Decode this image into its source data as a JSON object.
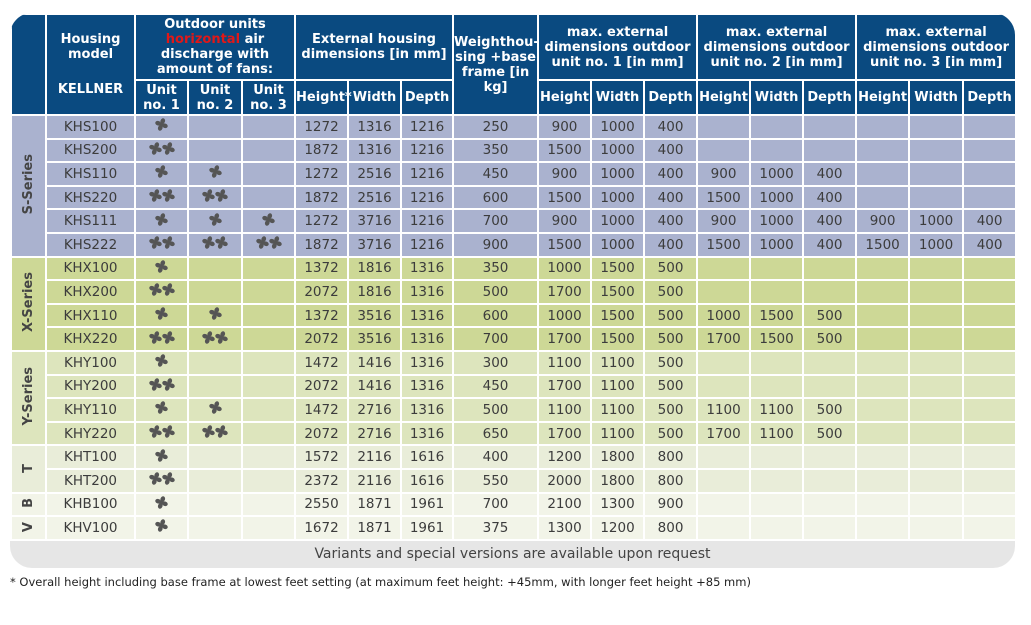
{
  "header": {
    "model": "Housing model",
    "brand": "KELLNER",
    "outdoor_pre": "Outdoor units",
    "outdoor_red": "horizontal",
    "outdoor_post": "air discharge with amount of fans:",
    "units": [
      "Unit no. 1",
      "Unit no. 2",
      "Unit no. 3"
    ],
    "housing": "External housing dimensions [in mm]",
    "weight": "Weighthou-sing +base frame [in kg]",
    "unit1": "max. external dimensions outdoor unit no. 1 [in mm]",
    "unit2": "max. external dimensions outdoor unit no. 2 [in mm]",
    "unit3": "max. external dimensions outdoor unit no. 3 [in mm]",
    "housing_cols": [
      "Height*",
      "Width",
      "Depth"
    ],
    "dim_cols": [
      "Height",
      "Width",
      "Depth"
    ]
  },
  "colors": {
    "header": "#0a4a80",
    "S": "#aab2cf",
    "X": "#cdd896",
    "Y": "#dde5bd",
    "T": "#e9edd9",
    "B": "#f2f4e8",
    "V": "#f2f4e8",
    "accent": "#e01818"
  },
  "groups": [
    {
      "key": "S",
      "label": "S-Series",
      "rows": 6
    },
    {
      "key": "X",
      "label": "X-Series",
      "rows": 4
    },
    {
      "key": "Y",
      "label": "Y-Series",
      "rows": 4
    },
    {
      "key": "T",
      "label": "T",
      "rows": 2
    },
    {
      "key": "B",
      "label": "B",
      "rows": 1
    },
    {
      "key": "V",
      "label": "V",
      "rows": 1
    }
  ],
  "rows": [
    {
      "model": "KHS100",
      "fans": [
        1,
        0,
        0
      ],
      "housing": [
        "1272",
        "1316",
        "1216"
      ],
      "weight": "250",
      "u1": [
        "900",
        "1000",
        "400"
      ],
      "u2": [
        "",
        "",
        ""
      ],
      "u3": [
        "",
        "",
        ""
      ]
    },
    {
      "model": "KHS200",
      "fans": [
        2,
        0,
        0
      ],
      "housing": [
        "1872",
        "1316",
        "1216"
      ],
      "weight": "350",
      "u1": [
        "1500",
        "1000",
        "400"
      ],
      "u2": [
        "",
        "",
        ""
      ],
      "u3": [
        "",
        "",
        ""
      ]
    },
    {
      "model": "KHS110",
      "fans": [
        1,
        1,
        0
      ],
      "housing": [
        "1272",
        "2516",
        "1216"
      ],
      "weight": "450",
      "u1": [
        "900",
        "1000",
        "400"
      ],
      "u2": [
        "900",
        "1000",
        "400"
      ],
      "u3": [
        "",
        "",
        ""
      ]
    },
    {
      "model": "KHS220",
      "fans": [
        2,
        2,
        0
      ],
      "housing": [
        "1872",
        "2516",
        "1216"
      ],
      "weight": "600",
      "u1": [
        "1500",
        "1000",
        "400"
      ],
      "u2": [
        "1500",
        "1000",
        "400"
      ],
      "u3": [
        "",
        "",
        ""
      ]
    },
    {
      "model": "KHS111",
      "fans": [
        1,
        1,
        1
      ],
      "housing": [
        "1272",
        "3716",
        "1216"
      ],
      "weight": "700",
      "u1": [
        "900",
        "1000",
        "400"
      ],
      "u2": [
        "900",
        "1000",
        "400"
      ],
      "u3": [
        "900",
        "1000",
        "400"
      ]
    },
    {
      "model": "KHS222",
      "fans": [
        2,
        2,
        2
      ],
      "housing": [
        "1872",
        "3716",
        "1216"
      ],
      "weight": "900",
      "u1": [
        "1500",
        "1000",
        "400"
      ],
      "u2": [
        "1500",
        "1000",
        "400"
      ],
      "u3": [
        "1500",
        "1000",
        "400"
      ]
    },
    {
      "model": "KHX100",
      "fans": [
        1,
        0,
        0
      ],
      "housing": [
        "1372",
        "1816",
        "1316"
      ],
      "weight": "350",
      "u1": [
        "1000",
        "1500",
        "500"
      ],
      "u2": [
        "",
        "",
        ""
      ],
      "u3": [
        "",
        "",
        ""
      ]
    },
    {
      "model": "KHX200",
      "fans": [
        2,
        0,
        0
      ],
      "housing": [
        "2072",
        "1816",
        "1316"
      ],
      "weight": "500",
      "u1": [
        "1700",
        "1500",
        "500"
      ],
      "u2": [
        "",
        "",
        ""
      ],
      "u3": [
        "",
        "",
        ""
      ]
    },
    {
      "model": "KHX110",
      "fans": [
        1,
        1,
        0
      ],
      "housing": [
        "1372",
        "3516",
        "1316"
      ],
      "weight": "600",
      "u1": [
        "1000",
        "1500",
        "500"
      ],
      "u2": [
        "1000",
        "1500",
        "500"
      ],
      "u3": [
        "",
        "",
        ""
      ]
    },
    {
      "model": "KHX220",
      "fans": [
        2,
        2,
        0
      ],
      "housing": [
        "2072",
        "3516",
        "1316"
      ],
      "weight": "700",
      "u1": [
        "1700",
        "1500",
        "500"
      ],
      "u2": [
        "1700",
        "1500",
        "500"
      ],
      "u3": [
        "",
        "",
        ""
      ]
    },
    {
      "model": "KHY100",
      "fans": [
        1,
        0,
        0
      ],
      "housing": [
        "1472",
        "1416",
        "1316"
      ],
      "weight": "300",
      "u1": [
        "1100",
        "1100",
        "500"
      ],
      "u2": [
        "",
        "",
        ""
      ],
      "u3": [
        "",
        "",
        ""
      ]
    },
    {
      "model": "KHY200",
      "fans": [
        2,
        0,
        0
      ],
      "housing": [
        "2072",
        "1416",
        "1316"
      ],
      "weight": "450",
      "u1": [
        "1700",
        "1100",
        "500"
      ],
      "u2": [
        "",
        "",
        ""
      ],
      "u3": [
        "",
        "",
        ""
      ]
    },
    {
      "model": "KHY110",
      "fans": [
        1,
        1,
        0
      ],
      "housing": [
        "1472",
        "2716",
        "1316"
      ],
      "weight": "500",
      "u1": [
        "1100",
        "1100",
        "500"
      ],
      "u2": [
        "1100",
        "1100",
        "500"
      ],
      "u3": [
        "",
        "",
        ""
      ]
    },
    {
      "model": "KHY220",
      "fans": [
        2,
        2,
        0
      ],
      "housing": [
        "2072",
        "2716",
        "1316"
      ],
      "weight": "650",
      "u1": [
        "1700",
        "1100",
        "500"
      ],
      "u2": [
        "1700",
        "1100",
        "500"
      ],
      "u3": [
        "",
        "",
        ""
      ]
    },
    {
      "model": "KHT100",
      "fans": [
        1,
        0,
        0
      ],
      "housing": [
        "1572",
        "2116",
        "1616"
      ],
      "weight": "400",
      "u1": [
        "1200",
        "1800",
        "800"
      ],
      "u2": [
        "",
        "",
        ""
      ],
      "u3": [
        "",
        "",
        ""
      ]
    },
    {
      "model": "KHT200",
      "fans": [
        2,
        0,
        0
      ],
      "housing": [
        "2372",
        "2116",
        "1616"
      ],
      "weight": "550",
      "u1": [
        "2000",
        "1800",
        "800"
      ],
      "u2": [
        "",
        "",
        ""
      ],
      "u3": [
        "",
        "",
        ""
      ]
    },
    {
      "model": "KHB100",
      "fans": [
        1,
        0,
        0
      ],
      "housing": [
        "2550",
        "1871",
        "1961"
      ],
      "weight": "700",
      "u1": [
        "2100",
        "1300",
        "900"
      ],
      "u2": [
        "",
        "",
        ""
      ],
      "u3": [
        "",
        "",
        ""
      ]
    },
    {
      "model": "KHV100",
      "fans": [
        1,
        0,
        0
      ],
      "housing": [
        "1672",
        "1871",
        "1961"
      ],
      "weight": "375",
      "u1": [
        "1300",
        "1200",
        "800"
      ],
      "u2": [
        "",
        "",
        ""
      ],
      "u3": [
        "",
        "",
        ""
      ]
    }
  ],
  "footer": "Variants and special versions are available upon request",
  "footnote": "* Overall height including base frame at lowest feet setting (at maximum feet height: +45mm, with longer feet height +85 mm)"
}
